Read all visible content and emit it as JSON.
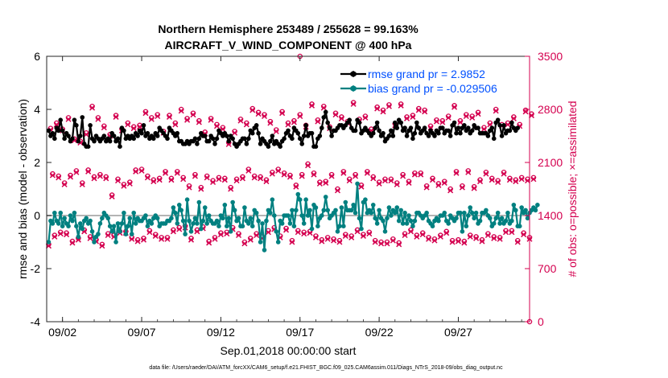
{
  "chart_data": {
    "type": "line",
    "title_line1": "Northern Hemisphere 253489 / 255628 = 99.163%",
    "title_line2": "AIRCRAFT_V_WIND_COMPONENT @ 400 hPa",
    "xlabel": "Sep.01,2018 00:00:00 start",
    "ylabel_left": "rmse and bias (model - observation)",
    "ylabel_right": "# of obs: o=possible; ×=assimilated",
    "footer": "data file: /Users/raeder/DAI/ATM_forcXX/CAM6_setup/f.e21.FHIST_BGC.f09_025.CAM6assim.011/Diags_NTrS_2018-09/obs_diag_output.nc",
    "xlim": [
      0,
      30.5
    ],
    "ylim_left": [
      -4,
      6
    ],
    "ylim_right": [
      0,
      3500
    ],
    "x_ticks": [
      {
        "value": 1,
        "label": "09/02"
      },
      {
        "value": 6,
        "label": "09/07"
      },
      {
        "value": 11,
        "label": "09/12"
      },
      {
        "value": 16,
        "label": "09/17"
      },
      {
        "value": 21,
        "label": "09/22"
      },
      {
        "value": 26,
        "label": "09/27"
      }
    ],
    "y_ticks_left": [
      -4,
      -2,
      0,
      2,
      4,
      6
    ],
    "y_ticks_right": [
      0,
      700,
      1400,
      2100,
      2800,
      3500
    ],
    "legend": [
      {
        "label": "rmse grand pr = 2.9852",
        "color": "#000000"
      },
      {
        "label": "bias grand pr = -0.029506",
        "color": "#008080"
      }
    ],
    "colors": {
      "rmse": "#000000",
      "bias": "#008080",
      "obs": "#d4004f",
      "zero_line": "#b4b4b4",
      "legend_text": "#0050ff"
    },
    "series": [
      {
        "name": "rmse",
        "values": [
          3.2,
          3.0,
          3.1,
          2.9,
          3.3,
          3.2,
          3.6,
          3.2,
          2.9,
          3.1,
          3.0,
          2.8,
          2.9,
          3.6,
          3.4,
          2.8,
          3.0,
          3.7,
          2.7,
          2.6,
          2.6,
          3.4,
          2.9,
          2.8,
          3.0,
          2.9,
          2.8,
          2.9,
          3.0,
          2.8,
          2.9,
          2.8,
          3.1,
          3.0,
          2.8,
          2.9,
          2.6,
          3.3,
          3.2,
          2.9,
          3.0,
          2.9,
          3.0,
          2.9,
          3.1,
          3.0,
          3.2,
          3.1,
          3.4,
          3.0,
          3.1,
          2.9,
          3.0,
          2.9,
          3.1,
          3.0,
          3.3,
          3.2,
          3.1,
          3.0,
          2.9,
          3.3,
          3.2,
          3.1,
          3.0,
          3.1,
          2.8,
          2.8,
          2.7,
          2.7,
          2.8,
          2.7,
          2.8,
          2.8,
          2.9,
          2.7,
          2.9,
          3.1,
          3.0,
          3.0,
          2.8,
          2.8,
          3.0,
          2.9,
          2.7,
          2.9,
          3.2,
          3.1,
          3.0,
          3.1,
          3.0,
          2.8,
          3.0,
          2.9,
          2.7,
          2.6,
          2.7,
          2.8,
          2.9,
          2.9,
          2.7,
          2.9,
          3.2,
          3.1,
          3.3,
          3.4,
          3.1,
          2.7,
          2.9,
          2.8,
          2.7,
          2.6,
          2.8,
          3.0,
          2.7,
          2.8,
          2.7,
          2.6,
          2.8,
          2.9,
          3.1,
          3.2,
          3.0,
          2.9,
          3.3,
          3.2,
          3.1,
          2.9,
          2.7,
          3.0,
          3.4,
          3.0,
          3.1,
          3.1,
          2.6,
          2.6,
          2.9,
          3.0,
          3.3,
          3.7,
          3.9,
          3.5,
          3.3,
          3.0,
          3.2,
          3.2,
          3.3,
          3.4,
          3.4,
          3.3,
          3.4,
          3.5,
          3.6,
          3.3,
          3.2,
          3.2,
          3.6,
          3.5,
          3.1,
          3.2,
          3.3,
          3.2,
          3.1,
          3.0,
          3.1,
          3.3,
          3.5,
          3.2,
          3.0,
          3.1,
          2.8,
          2.9,
          3.0,
          3.2,
          3.0,
          3.5,
          3.3,
          3.6,
          3.5,
          3.2,
          3.3,
          3.0,
          3.2,
          3.3,
          2.9,
          3.1,
          3.5,
          3.3,
          3.1,
          3.2,
          3.3,
          3.1,
          3.0,
          3.2,
          3.1,
          3.0,
          3.2,
          3.1,
          3.3,
          3.3,
          3.1,
          3.2,
          3.2,
          3.0,
          3.4,
          3.5,
          3.1,
          3.3,
          3.1,
          3.3,
          3.4,
          3.2,
          3.3,
          3.1,
          3.2,
          3.4,
          3.3,
          3.3,
          3.1,
          3.1,
          3.1,
          3.1,
          3.0,
          3.2,
          3.3,
          2.9,
          3.5,
          3.6,
          3.4,
          3.0,
          3.4,
          3.1,
          3.2,
          3.2,
          3.5,
          3.3,
          3.2,
          3.3
        ]
      },
      {
        "name": "bias",
        "values": [
          -1.0,
          -0.2,
          -0.3,
          0.1,
          -0.2,
          -0.3,
          0.1,
          -0.4,
          -0.1,
          -0.3,
          -0.4,
          0.0,
          -0.2,
          0.1,
          -0.4,
          -0.8,
          -0.3,
          -0.5,
          -0.2,
          -0.1,
          -0.3,
          -0.2,
          -0.6,
          -1.0,
          -0.8,
          -0.7,
          -0.3,
          -0.1,
          0.1,
          0.0,
          -0.1,
          -0.4,
          -0.6,
          -0.4,
          -1.0,
          -0.3,
          -0.6,
          -0.3,
          0.1,
          -0.7,
          -0.4,
          -0.1,
          -0.7,
          0.1,
          -0.3,
          -0.1,
          -0.2,
          -0.2,
          -0.1,
          0.0,
          -0.4,
          -0.2,
          -0.3,
          -0.1,
          0.0,
          -0.1,
          -0.4,
          -0.3,
          -0.3,
          -0.3,
          -0.2,
          -0.2,
          -0.1,
          0.3,
          0.1,
          -0.3,
          0.4,
          0.2,
          -0.2,
          -0.7,
          0.6,
          -0.2,
          -0.6,
          -0.3,
          -0.1,
          -0.3,
          0.5,
          -0.5,
          -0.2,
          0.3,
          -0.3,
          0.0,
          -0.2,
          -0.3,
          -0.3,
          -0.2,
          -0.4,
          0.0,
          -0.1,
          0.4,
          -0.4,
          -0.1,
          -0.6,
          0.5,
          0.2,
          -0.2,
          -0.1,
          -0.4,
          -0.4,
          0.3,
          -0.2,
          -0.3,
          -0.1,
          -0.4,
          0.2,
          0.1,
          -0.2,
          -1.0,
          -0.3,
          -1.3,
          -0.2,
          0.2,
          0.1,
          0.6,
          0.0,
          -0.6,
          -1.0,
          -0.2,
          -0.3,
          0.0,
          0.0,
          0.0,
          -0.3,
          0.2,
          -0.4,
          0.2,
          0.8,
          0.6,
          0.0,
          -0.3,
          0.6,
          0.0,
          0.2,
          -0.5,
          0.4,
          0.3,
          -0.4,
          -0.1,
          0.0,
          0.2,
          0.7,
          0.2,
          -0.1,
          0.0,
          0.1,
          0.2,
          -0.6,
          -0.4,
          0.3,
          -0.4,
          0.5,
          0.2,
          0.2,
          0.2,
          0.4,
          0.1,
          1.2,
          -0.1,
          -0.5,
          0.5,
          0.6,
          0.1,
          0.2,
          0.1,
          0.4,
          -0.1,
          -0.3,
          0.2,
          -0.1,
          -0.2,
          -0.6,
          -0.1,
          0.3,
          0.0,
          0.2,
          0.1,
          0.3,
          -0.2,
          0.2,
          -0.3,
          0.1,
          -0.3,
          0.0,
          -0.2,
          -0.4,
          -0.2,
          0.1,
          0.1,
          0.0,
          -0.1,
          0.0,
          0.1,
          -0.2,
          -0.3,
          -0.4,
          -0.2,
          -0.1,
          -0.2,
          0.0,
          0.0,
          0.1,
          -0.2,
          -0.3,
          0.0,
          -0.1,
          -0.2,
          -0.1,
          0.1,
          0.1,
          -0.6,
          0.1,
          -0.4,
          0.0,
          0.3,
          0.1,
          -0.1,
          0.1,
          -0.3,
          -0.2,
          0.1,
          0.1,
          0.2,
          0.0,
          -0.1,
          -0.4,
          -0.3,
          -0.1,
          0.1,
          -0.3,
          -0.1,
          -0.3,
          -0.2,
          0.1,
          -0.3,
          -0.2,
          0.4,
          0.2,
          -0.4,
          -0.4,
          0.3,
          0.1,
          0.2,
          -0.1,
          0.1,
          0.2,
          0.3,
          0.2,
          0.4
        ]
      },
      {
        "name": "obs_possible",
        "values": [
          1020,
          2550,
          1950,
          1140,
          2620,
          1920,
          1180,
          2540,
          1830,
          1170,
          2690,
          1930,
          1060,
          2410,
          1990,
          1100,
          2380,
          1830,
          1210,
          2490,
          2000,
          1120,
          2840,
          1910,
          1080,
          2690,
          1940,
          1020,
          2580,
          1910,
          1160,
          2470,
          1670,
          1140,
          2720,
          1880,
          1190,
          2540,
          1810,
          1190,
          2620,
          1840,
          1110,
          2570,
          2000,
          1080,
          2590,
          2010,
          1100,
          2770,
          1920,
          1200,
          2690,
          1870,
          1150,
          2730,
          1890,
          1110,
          2510,
          1980,
          1110,
          2720,
          1890,
          1210,
          2620,
          1980,
          1240,
          2800,
          1900,
          1260,
          2680,
          1790,
          1100,
          2750,
          1940,
          1210,
          2650,
          1770,
          1250,
          2500,
          1920,
          1060,
          2680,
          1860,
          1110,
          2600,
          1900,
          1170,
          2560,
          1890,
          1180,
          2360,
          1770,
          1240,
          2510,
          1880,
          1160,
          2670,
          1910,
          1050,
          2620,
          2010,
          1100,
          2810,
          1920,
          1160,
          2760,
          1910,
          1120,
          2730,
          1870,
          1200,
          2640,
          1970,
          1240,
          2530,
          2010,
          1130,
          2770,
          1960,
          1230,
          2620,
          1930,
          1070,
          2650,
          1800,
          1200,
          2730,
          1940,
          1180,
          2590,
          2080,
          1190,
          2870,
          1960,
          1130,
          2660,
          1840,
          1080,
          2840,
          1850,
          1110,
          2570,
          1940,
          1090,
          2750,
          1750,
          1070,
          2700,
          1980,
          1150,
          2640,
          1880,
          1130,
          2890,
          1940,
          1210,
          2670,
          1800,
          1150,
          2710,
          1980,
          1180,
          2540,
          1910,
          1070,
          2830,
          1840,
          1050,
          2790,
          1880,
          1050,
          2860,
          1880,
          1090,
          2610,
          1830,
          1040,
          2870,
          1940,
          1160,
          2700,
          1850,
          1210,
          2720,
          1960,
          1140,
          2810,
          1960,
          1170,
          2790,
          1790,
          1110,
          2580,
          1890,
          1090,
          2660,
          1820,
          1140,
          2650,
          1850,
          1190,
          2710,
          1750,
          1070,
          2850,
          1980,
          1080,
          2650,
          1790,
          1060,
          2730,
          1990,
          1140,
          2710,
          1780,
          1120,
          2760,
          1870,
          1080,
          2560,
          1970,
          1160,
          2620,
          1890,
          1120,
          2800,
          1860,
          1110,
          2600,
          1970,
          1200,
          2620,
          1890,
          1200,
          2700,
          1870,
          1070,
          2600,
          1900,
          1170,
          2790,
          1880,
          1110,
          2740,
          1900
        ]
      },
      {
        "name": "obs_assimilated",
        "values": [
          1000,
          2530,
          1930,
          1120,
          2600,
          1900,
          1160,
          2520,
          1810,
          1150,
          2670,
          1910,
          1040,
          2390,
          1970,
          1080,
          2360,
          1810,
          1190,
          2470,
          1980,
          1100,
          2820,
          1890,
          1060,
          2670,
          1920,
          1000,
          2560,
          1890,
          1140,
          2450,
          1650,
          1120,
          2700,
          1860,
          1170,
          2520,
          1790,
          1170,
          2600,
          1820,
          1090,
          2550,
          1980,
          1060,
          2570,
          1990,
          1080,
          2750,
          1900,
          1180,
          2670,
          1850,
          1130,
          2710,
          1870,
          1090,
          2490,
          1960,
          1090,
          2700,
          1870,
          1190,
          2600,
          1960,
          1220,
          2780,
          1880,
          1240,
          2660,
          1770,
          1080,
          2730,
          1920,
          1190,
          2630,
          1750,
          1230,
          2480,
          1900,
          1040,
          2660,
          1840,
          1090,
          2580,
          1880,
          1150,
          2540,
          1870,
          1160,
          2340,
          1750,
          1220,
          2490,
          1860,
          1140,
          2650,
          1890,
          1030,
          2600,
          1990,
          1080,
          2790,
          1900,
          1140,
          2740,
          1890,
          1100,
          2710,
          1850,
          1180,
          2620,
          1950,
          1220,
          2510,
          1990,
          1110,
          2750,
          1940,
          1210,
          2600,
          1910,
          1050,
          2630,
          1780,
          1180,
          2710,
          1920,
          1160,
          2570,
          2060,
          1170,
          2850,
          1940,
          1110,
          2640,
          1820,
          1060,
          2820,
          1830,
          1090,
          2550,
          1920,
          1070,
          2730,
          1730,
          1050,
          2680,
          1960,
          1130,
          2620,
          1860,
          1110,
          2870,
          1920,
          1190,
          2650,
          1780,
          1130,
          2690,
          1960,
          1160,
          2520,
          1890,
          1050,
          2810,
          1820,
          1030,
          2770,
          1860,
          1030,
          2840,
          1860,
          1070,
          2590,
          1810,
          1020,
          2850,
          1920,
          1140,
          2680,
          1830,
          1190,
          2700,
          1940,
          1120,
          2790,
          1940,
          1150,
          2770,
          1770,
          1090,
          2560,
          1870,
          1070,
          2640,
          1800,
          1120,
          2630,
          1830,
          1170,
          2690,
          1730,
          1050,
          2830,
          1960,
          1060,
          2630,
          1770,
          1040,
          2710,
          1970,
          1120,
          2690,
          1760,
          1100,
          2740,
          1850,
          1060,
          2540,
          1950,
          1140,
          2600,
          1870,
          1100,
          2780,
          1840,
          1090,
          2580,
          1950,
          1180,
          2600,
          1870,
          1180,
          2680,
          1850,
          1050,
          2580,
          1880,
          1150,
          2770,
          1860,
          1090,
          2720,
          1880
        ]
      }
    ]
  }
}
